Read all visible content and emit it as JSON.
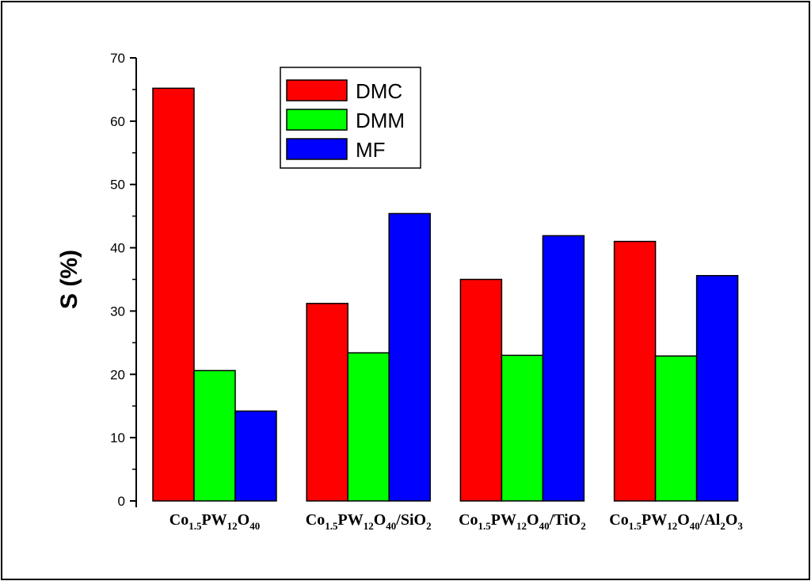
{
  "chart_data": {
    "type": "bar",
    "ylabel": "S (%)",
    "xlabel": "",
    "ylim": [
      0,
      70
    ],
    "yticks": [
      0,
      10,
      20,
      30,
      40,
      50,
      60,
      70
    ],
    "categories": [
      [
        {
          "t": "Co"
        },
        {
          "t": "1.5",
          "sub": true
        },
        {
          "t": "PW"
        },
        {
          "t": "12",
          "sub": true
        },
        {
          "t": "O"
        },
        {
          "t": "40",
          "sub": true
        }
      ],
      [
        {
          "t": "Co"
        },
        {
          "t": "1.5",
          "sub": true
        },
        {
          "t": "PW"
        },
        {
          "t": "12",
          "sub": true
        },
        {
          "t": "O"
        },
        {
          "t": "40",
          "sub": true
        },
        {
          "t": "/SiO"
        },
        {
          "t": "2",
          "sub": true
        }
      ],
      [
        {
          "t": "Co"
        },
        {
          "t": "1.5",
          "sub": true
        },
        {
          "t": "PW"
        },
        {
          "t": "12",
          "sub": true
        },
        {
          "t": "O"
        },
        {
          "t": "40",
          "sub": true
        },
        {
          "t": "/TiO"
        },
        {
          "t": "2",
          "sub": true
        }
      ],
      [
        {
          "t": "Co"
        },
        {
          "t": "1.5",
          "sub": true
        },
        {
          "t": "PW"
        },
        {
          "t": "12",
          "sub": true
        },
        {
          "t": "O"
        },
        {
          "t": "40",
          "sub": true
        },
        {
          "t": "/Al"
        },
        {
          "t": "2",
          "sub": true
        },
        {
          "t": "O"
        },
        {
          "t": "3",
          "sub": true
        }
      ]
    ],
    "series": [
      {
        "name": "DMC",
        "color": "#ff0000",
        "values": [
          65.2,
          31.2,
          35.0,
          41.0
        ]
      },
      {
        "name": "DMM",
        "color": "#00ff00",
        "values": [
          20.6,
          23.4,
          23.0,
          22.9
        ]
      },
      {
        "name": "MF",
        "color": "#0000ff",
        "values": [
          14.2,
          45.4,
          41.9,
          35.6
        ]
      }
    ],
    "legend_position": "top-center",
    "grid": false
  }
}
